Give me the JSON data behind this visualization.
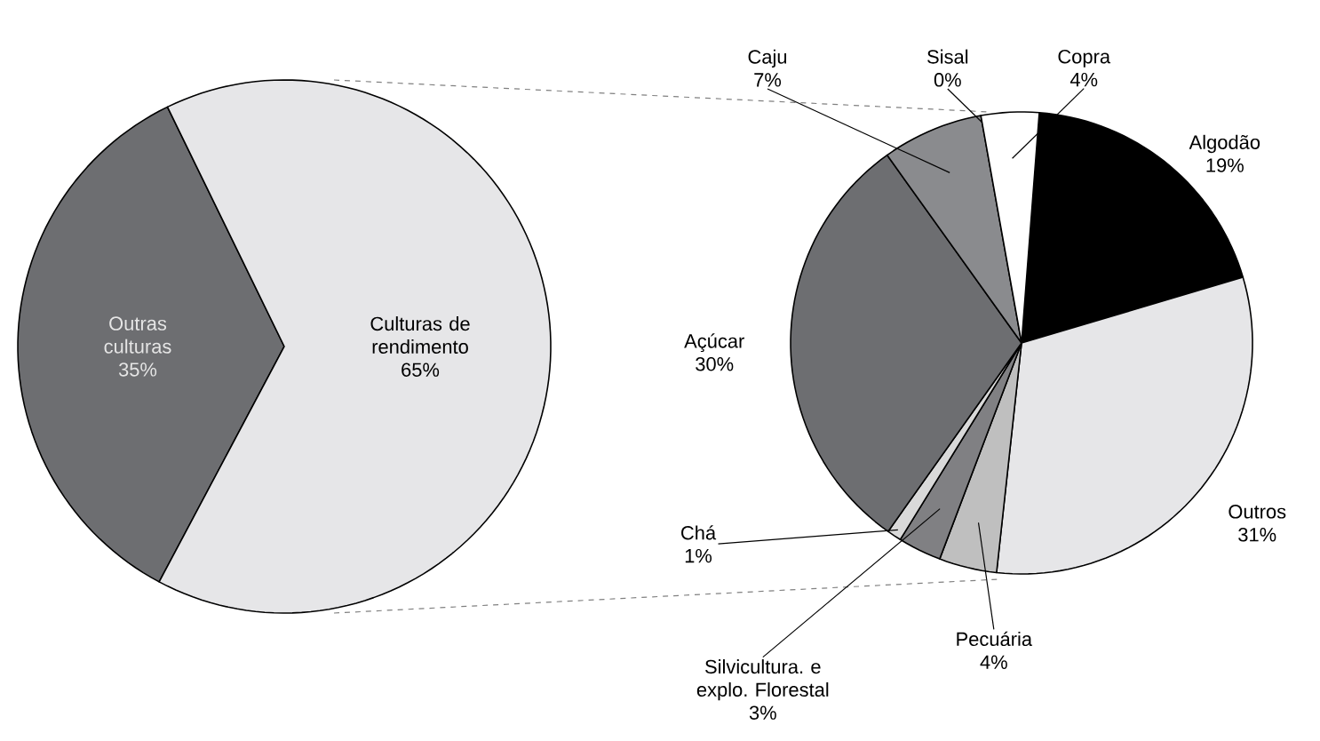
{
  "chart_data": [
    {
      "type": "pie",
      "categories": [
        "Outras culturas",
        "Culturas de rendimento"
      ],
      "values": [
        35,
        65
      ],
      "value_labels": [
        "35%",
        "65%"
      ],
      "colors": [
        "#6d6e71",
        "#e6e6e8"
      ]
    },
    {
      "type": "pie",
      "categories": [
        "Algodão",
        "Outros",
        "Pecuária",
        "Silvicultura. e explo. Florestal",
        "Chá",
        "Açúcar",
        "Caju",
        "Sisal",
        "Copra"
      ],
      "values": [
        19,
        31,
        4,
        3,
        1,
        30,
        7,
        0,
        4
      ],
      "value_labels": [
        "19%",
        "31%",
        "4%",
        "3%",
        "1%",
        "30%",
        "7%",
        "0%",
        "4%"
      ],
      "colors": [
        "#000000",
        "#e6e6e8",
        "#bfbfbf",
        "#808083",
        "#d9d9d9",
        "#6d6e71",
        "#8a8b8e",
        "#a0a0a0",
        "#ffffff"
      ]
    }
  ]
}
